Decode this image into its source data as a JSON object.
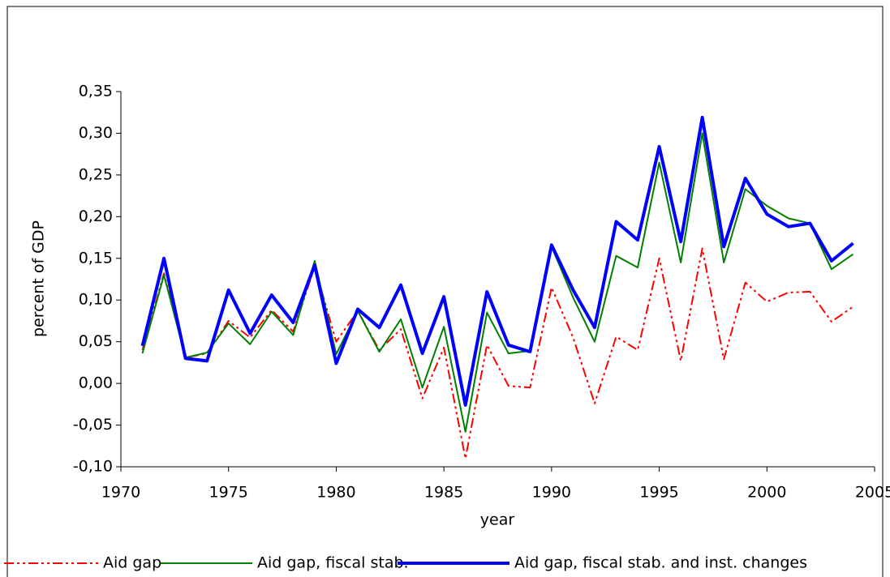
{
  "chart_data": {
    "type": "line",
    "x": [
      1971,
      1972,
      1973,
      1974,
      1975,
      1976,
      1977,
      1978,
      1979,
      1980,
      1981,
      1982,
      1983,
      1984,
      1985,
      1986,
      1987,
      1988,
      1989,
      1990,
      1991,
      1992,
      1993,
      1994,
      1995,
      1996,
      1997,
      1998,
      1999,
      2000,
      2001,
      2002,
      2003,
      2004
    ],
    "series": [
      {
        "name": "Aid gap",
        "color": "#ff0000",
        "dash": "12,4,3,4,3,4",
        "width": 2,
        "values": [
          0.04,
          0.132,
          0.031,
          0.036,
          0.075,
          0.055,
          0.088,
          0.062,
          0.14,
          0.05,
          0.087,
          0.04,
          0.065,
          -0.018,
          0.043,
          -0.09,
          0.046,
          -0.003,
          -0.005,
          0.115,
          0.055,
          -0.024,
          0.056,
          0.04,
          0.15,
          0.027,
          0.162,
          0.029,
          0.121,
          0.098,
          0.109,
          0.11,
          0.074,
          0.092
        ]
      },
      {
        "name": "Aid gap, fiscal stab.",
        "color": "#008000",
        "width": 2,
        "values": [
          0.036,
          0.13,
          0.031,
          0.037,
          0.072,
          0.047,
          0.086,
          0.058,
          0.147,
          0.035,
          0.087,
          0.038,
          0.077,
          -0.005,
          0.068,
          -0.058,
          0.085,
          0.036,
          0.039,
          0.164,
          0.103,
          0.05,
          0.153,
          0.139,
          0.265,
          0.145,
          0.3,
          0.145,
          0.233,
          0.213,
          0.198,
          0.192,
          0.137,
          0.155
        ]
      },
      {
        "name": "Aid gap, fiscal stab. and inst. changes",
        "color": "#0000ff",
        "width": 4,
        "values": [
          0.045,
          0.15,
          0.03,
          0.027,
          0.112,
          0.06,
          0.106,
          0.073,
          0.142,
          0.024,
          0.089,
          0.067,
          0.118,
          0.036,
          0.104,
          -0.026,
          0.11,
          0.046,
          0.038,
          0.166,
          0.112,
          0.067,
          0.194,
          0.172,
          0.284,
          0.17,
          0.319,
          0.164,
          0.246,
          0.203,
          0.188,
          0.192,
          0.147,
          0.168
        ]
      }
    ],
    "xlabel": "year",
    "ylabel": "percent of GDP",
    "xlim": [
      1970,
      2005
    ],
    "xticks": [
      1970,
      1975,
      1980,
      1985,
      1990,
      1995,
      2000,
      2005
    ],
    "ylim": [
      -0.1,
      0.35
    ],
    "yticks": [
      {
        "value": -0.1,
        "label": "-0,10"
      },
      {
        "value": -0.05,
        "label": "-0,05"
      },
      {
        "value": 0,
        "label": "0,00"
      },
      {
        "value": 0.05,
        "label": "0,05"
      },
      {
        "value": 0.1,
        "label": "0,10"
      },
      {
        "value": 0.15,
        "label": "0,15"
      },
      {
        "value": 0.2,
        "label": "0,20"
      },
      {
        "value": 0.25,
        "label": "0,25"
      },
      {
        "value": 0.3,
        "label": "0,30"
      },
      {
        "value": 0.35,
        "label": "0,35"
      }
    ],
    "legend": "bottom"
  }
}
